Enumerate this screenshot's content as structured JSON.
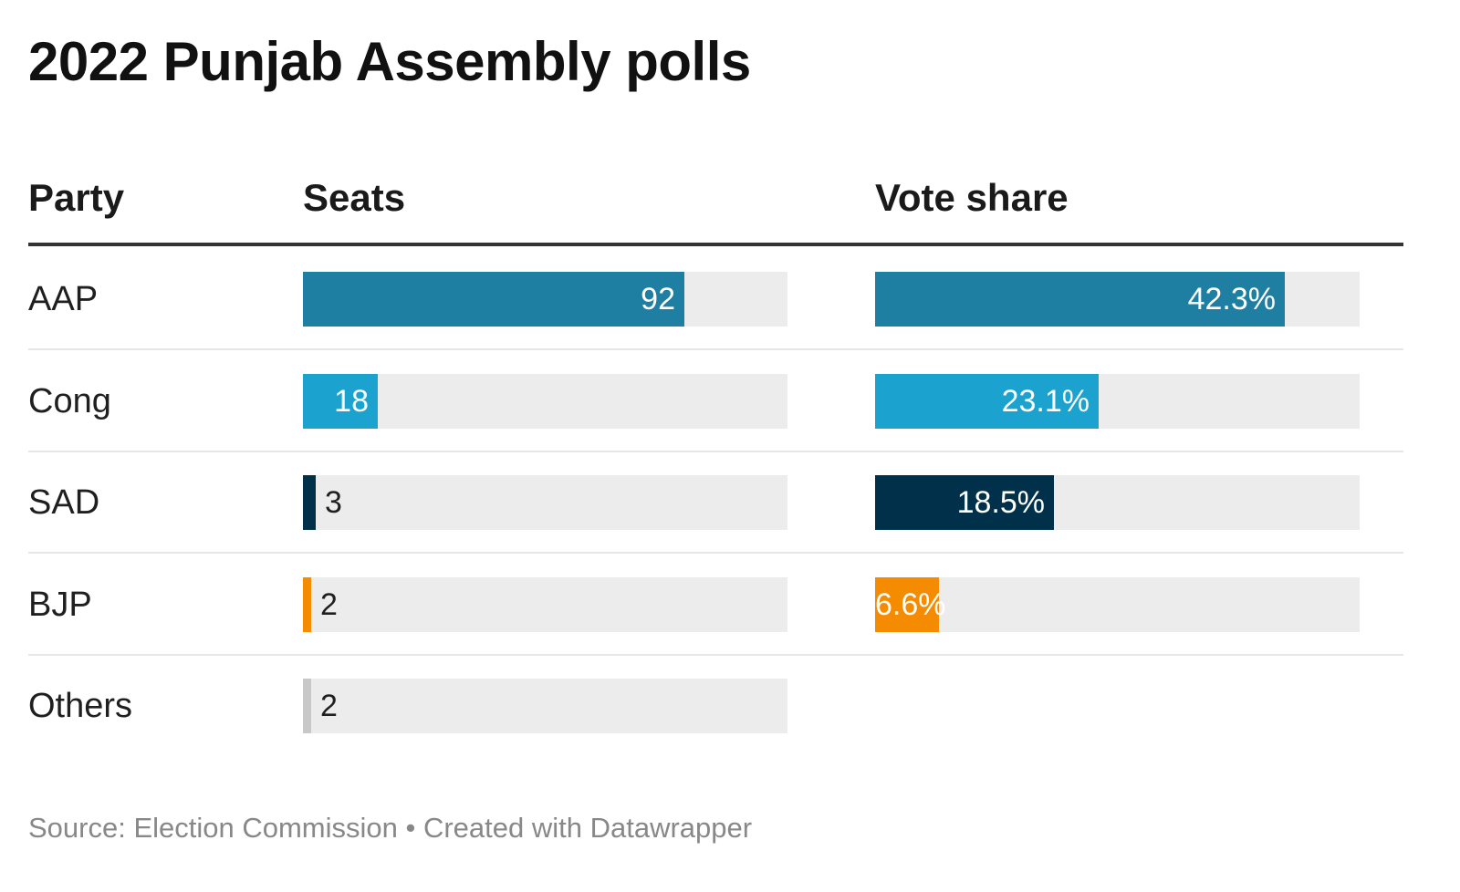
{
  "chart_data": {
    "type": "table",
    "title": "2022 Punjab Assembly polls",
    "columns": [
      "Party",
      "Seats",
      "Vote share"
    ],
    "rows": [
      {
        "party": "AAP",
        "seats": 92,
        "seats_label": "92",
        "vote_share": 42.3,
        "vote_label": "42.3%",
        "color": "#1f7fa2"
      },
      {
        "party": "Cong",
        "seats": 18,
        "seats_label": "18",
        "vote_share": 23.1,
        "vote_label": "23.1%",
        "color": "#1ba2cf"
      },
      {
        "party": "SAD",
        "seats": 3,
        "seats_label": "3",
        "vote_share": 18.5,
        "vote_label": "18.5%",
        "color": "#00304a"
      },
      {
        "party": "BJP",
        "seats": 2,
        "seats_label": "2",
        "vote_share": 6.6,
        "vote_label": "6.6%",
        "color": "#f58b00"
      },
      {
        "party": "Others",
        "seats": 2,
        "seats_label": "2",
        "vote_share": null,
        "vote_label": "",
        "color": "#c8c8c8"
      }
    ],
    "seats_max": 117,
    "vote_max": 50
  },
  "footer": {
    "text": "Source: Election Commission • Created with Datawrapper"
  }
}
